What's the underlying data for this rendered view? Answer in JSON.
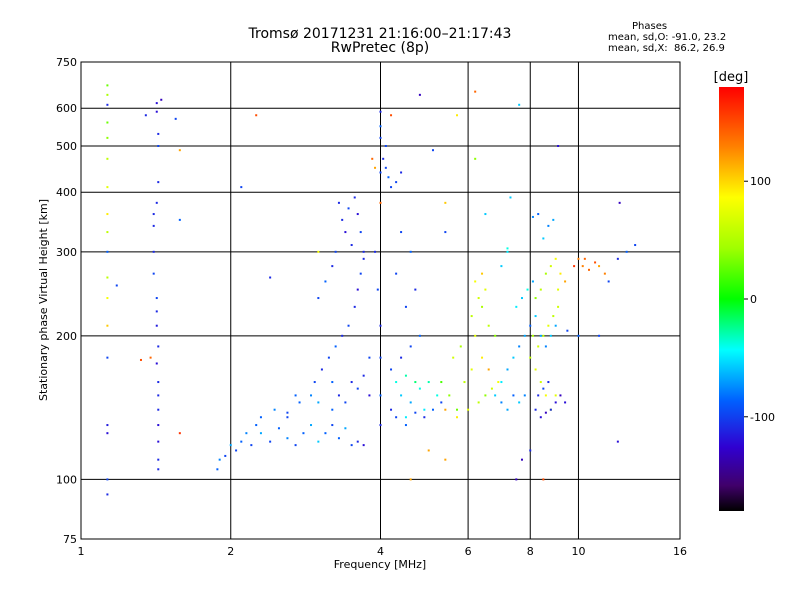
{
  "title": {
    "line1": "Tromsø 20171231 21:16:00–21:17:43",
    "line2": "RwPretec (8p)"
  },
  "phase_stats": {
    "heading": "Phases",
    "line1": "mean, sd,O: -91.0, 23.2",
    "line2": "mean, sd,X:  86.2, 26.9"
  },
  "colorbar": {
    "unit": "[deg]",
    "ticks": [
      {
        "value": 100,
        "label": "100"
      },
      {
        "value": 0,
        "label": "0"
      },
      {
        "value": -100,
        "label": "-100"
      }
    ],
    "range": [
      -180,
      180
    ]
  },
  "chart_data": {
    "type": "scatter",
    "xlabel": "Frequency [MHz]",
    "ylabel": "Stationary phase Virtual Height [km]",
    "xscale": "log",
    "yscale": "log",
    "xlim": [
      1,
      16
    ],
    "ylim": [
      75,
      750
    ],
    "grid": true,
    "x_ticks": [
      {
        "value": 1,
        "label": "1"
      },
      {
        "value": 2,
        "label": "2"
      },
      {
        "value": 4,
        "label": "4"
      },
      {
        "value": 6,
        "label": "6"
      },
      {
        "value": 8,
        "label": "8"
      },
      {
        "value": 10,
        "label": "10"
      },
      {
        "value": 16,
        "label": "16"
      }
    ],
    "y_ticks": [
      {
        "value": 75,
        "label": "75"
      },
      {
        "value": 100,
        "label": "100"
      },
      {
        "value": 200,
        "label": "200"
      },
      {
        "value": 300,
        "label": "300"
      },
      {
        "value": 400,
        "label": "400"
      },
      {
        "value": 500,
        "label": "500"
      },
      {
        "value": 600,
        "label": "600"
      },
      {
        "value": 750,
        "label": "750"
      }
    ],
    "color_quantity": "phase [deg]",
    "points": [
      [
        1.13,
        100,
        -100
      ],
      [
        1.13,
        93,
        -110
      ],
      [
        1.13,
        125,
        -120
      ],
      [
        1.13,
        130,
        -115
      ],
      [
        1.13,
        180,
        -100
      ],
      [
        1.13,
        210,
        110
      ],
      [
        1.13,
        240,
        90
      ],
      [
        1.13,
        265,
        60
      ],
      [
        1.13,
        300,
        -90
      ],
      [
        1.13,
        330,
        60
      ],
      [
        1.13,
        360,
        100
      ],
      [
        1.13,
        410,
        80
      ],
      [
        1.13,
        470,
        60
      ],
      [
        1.13,
        520,
        40
      ],
      [
        1.13,
        560,
        30
      ],
      [
        1.13,
        610,
        -110
      ],
      [
        1.13,
        640,
        50
      ],
      [
        1.13,
        670,
        30
      ],
      [
        1.18,
        255,
        -100
      ],
      [
        1.35,
        580,
        -110
      ],
      [
        1.42,
        590,
        -120
      ],
      [
        1.43,
        530,
        -110
      ],
      [
        1.43,
        500,
        -100
      ],
      [
        1.43,
        420,
        -110
      ],
      [
        1.42,
        380,
        -110
      ],
      [
        1.4,
        360,
        -110
      ],
      [
        1.4,
        340,
        -110
      ],
      [
        1.4,
        300,
        -110
      ],
      [
        1.4,
        270,
        -100
      ],
      [
        1.42,
        240,
        -100
      ],
      [
        1.42,
        225,
        -110
      ],
      [
        1.42,
        210,
        -115
      ],
      [
        1.43,
        190,
        -110
      ],
      [
        1.42,
        175,
        -120
      ],
      [
        1.43,
        160,
        -110
      ],
      [
        1.43,
        150,
        -110
      ],
      [
        1.43,
        140,
        -110
      ],
      [
        1.43,
        130,
        -120
      ],
      [
        1.43,
        120,
        -120
      ],
      [
        1.43,
        110,
        -110
      ],
      [
        1.43,
        105,
        -110
      ],
      [
        1.38,
        180,
        140
      ],
      [
        1.32,
        178,
        150
      ],
      [
        1.42,
        615,
        -120
      ],
      [
        1.45,
        625,
        -130
      ],
      [
        1.55,
        570,
        -100
      ],
      [
        1.58,
        490,
        120
      ],
      [
        1.58,
        350,
        -90
      ],
      [
        1.58,
        125,
        160
      ],
      [
        1.88,
        105,
        -90
      ],
      [
        1.9,
        110,
        -80
      ],
      [
        1.95,
        112,
        -100
      ],
      [
        2.0,
        118,
        -70
      ],
      [
        2.05,
        115,
        -100
      ],
      [
        2.1,
        120,
        -90
      ],
      [
        2.15,
        125,
        -80
      ],
      [
        2.2,
        118,
        -100
      ],
      [
        2.25,
        130,
        -90
      ],
      [
        2.3,
        125,
        -70
      ],
      [
        2.4,
        120,
        -100
      ],
      [
        2.5,
        128,
        -90
      ],
      [
        2.6,
        122,
        -80
      ],
      [
        2.7,
        118,
        -100
      ],
      [
        2.8,
        125,
        -90
      ],
      [
        2.9,
        130,
        -70
      ],
      [
        3.0,
        120,
        -60
      ],
      [
        3.1,
        125,
        -90
      ],
      [
        3.2,
        130,
        -100
      ],
      [
        3.3,
        122,
        -90
      ],
      [
        3.4,
        128,
        -70
      ],
      [
        3.5,
        118,
        -100
      ],
      [
        3.6,
        120,
        -110
      ],
      [
        3.7,
        118,
        -120
      ],
      [
        2.3,
        135,
        -90
      ],
      [
        2.45,
        140,
        -80
      ],
      [
        2.6,
        138,
        -100
      ],
      [
        2.75,
        145,
        -90
      ],
      [
        2.9,
        150,
        -80
      ],
      [
        3.0,
        145,
        -70
      ],
      [
        3.2,
        140,
        -90
      ],
      [
        2.95,
        160,
        -100
      ],
      [
        3.05,
        170,
        -110
      ],
      [
        3.15,
        180,
        -100
      ],
      [
        3.25,
        190,
        -90
      ],
      [
        3.35,
        200,
        -110
      ],
      [
        3.45,
        210,
        -100
      ],
      [
        3.55,
        230,
        -110
      ],
      [
        3.6,
        250,
        -120
      ],
      [
        3.65,
        270,
        -100
      ],
      [
        3.7,
        290,
        -110
      ],
      [
        3.5,
        310,
        -110
      ],
      [
        3.4,
        330,
        -120
      ],
      [
        3.35,
        350,
        -110
      ],
      [
        3.45,
        370,
        -100
      ],
      [
        3.55,
        390,
        -110
      ],
      [
        3.6,
        360,
        -120
      ],
      [
        3.65,
        330,
        -100
      ],
      [
        3.7,
        300,
        -110
      ],
      [
        3.3,
        380,
        -110
      ],
      [
        3.25,
        300,
        -100
      ],
      [
        3.2,
        280,
        -110
      ],
      [
        3.1,
        260,
        -90
      ],
      [
        3.0,
        240,
        -100
      ],
      [
        3.5,
        160,
        -110
      ],
      [
        3.6,
        155,
        -100
      ],
      [
        3.8,
        150,
        -120
      ],
      [
        3.7,
        165,
        -110
      ],
      [
        3.8,
        180,
        -100
      ],
      [
        3.3,
        150,
        -110
      ],
      [
        3.4,
        145,
        -100
      ],
      [
        3.2,
        160,
        -90
      ],
      [
        3.9,
        300,
        -110
      ],
      [
        3.95,
        250,
        -100
      ],
      [
        4.0,
        210,
        -110
      ],
      [
        4.0,
        180,
        -100
      ],
      [
        4.0,
        150,
        -90
      ],
      [
        4.0,
        130,
        -110
      ],
      [
        4.0,
        440,
        -100
      ],
      [
        4.05,
        470,
        -110
      ],
      [
        4.1,
        450,
        -100
      ],
      [
        4.15,
        430,
        -90
      ],
      [
        4.3,
        420,
        -100
      ],
      [
        4.4,
        440,
        -110
      ],
      [
        4.2,
        410,
        -100
      ],
      [
        4.0,
        520,
        -100
      ],
      [
        4.0,
        550,
        -90
      ],
      [
        4.0,
        590,
        -110
      ],
      [
        4.1,
        500,
        -100
      ],
      [
        4.0,
        380,
        140
      ],
      [
        3.85,
        470,
        140
      ],
      [
        3.9,
        450,
        120
      ],
      [
        4.3,
        160,
        -40
      ],
      [
        4.5,
        165,
        -30
      ],
      [
        4.7,
        160,
        -20
      ],
      [
        4.8,
        155,
        -40
      ],
      [
        5.0,
        160,
        -30
      ],
      [
        4.4,
        150,
        -60
      ],
      [
        4.6,
        145,
        -70
      ],
      [
        4.9,
        140,
        -50
      ],
      [
        5.2,
        150,
        -40
      ],
      [
        4.2,
        170,
        -100
      ],
      [
        4.4,
        180,
        -110
      ],
      [
        4.6,
        190,
        -100
      ],
      [
        4.8,
        200,
        -90
      ],
      [
        4.5,
        230,
        -100
      ],
      [
        4.7,
        250,
        -110
      ],
      [
        4.3,
        270,
        -100
      ],
      [
        4.6,
        300,
        -90
      ],
      [
        4.4,
        330,
        -100
      ],
      [
        4.2,
        140,
        -110
      ],
      [
        4.3,
        135,
        -100
      ],
      [
        4.5,
        130,
        -90
      ],
      [
        4.7,
        138,
        -100
      ],
      [
        4.9,
        135,
        -110
      ],
      [
        5.1,
        140,
        -90
      ],
      [
        5.3,
        145,
        -100
      ],
      [
        5.3,
        160,
        20
      ],
      [
        5.5,
        150,
        40
      ],
      [
        5.7,
        140,
        30
      ],
      [
        5.9,
        160,
        60
      ],
      [
        6.1,
        170,
        80
      ],
      [
        5.6,
        180,
        70
      ],
      [
        5.8,
        190,
        50
      ],
      [
        6.2,
        200,
        80
      ],
      [
        6.4,
        180,
        100
      ],
      [
        6.6,
        170,
        120
      ],
      [
        5.4,
        140,
        120
      ],
      [
        5.7,
        135,
        100
      ],
      [
        6.0,
        140,
        80
      ],
      [
        6.3,
        145,
        60
      ],
      [
        6.5,
        150,
        40
      ],
      [
        6.7,
        155,
        70
      ],
      [
        6.9,
        160,
        90
      ],
      [
        6.1,
        220,
        60
      ],
      [
        6.3,
        240,
        70
      ],
      [
        6.5,
        250,
        80
      ],
      [
        6.4,
        230,
        50
      ],
      [
        6.6,
        210,
        60
      ],
      [
        6.8,
        200,
        40
      ],
      [
        6.2,
        260,
        90
      ],
      [
        6.4,
        270,
        110
      ],
      [
        6.8,
        150,
        -60
      ],
      [
        7.0,
        145,
        -80
      ],
      [
        7.2,
        140,
        -70
      ],
      [
        7.4,
        150,
        -90
      ],
      [
        7.6,
        145,
        -60
      ],
      [
        7.8,
        150,
        -80
      ],
      [
        7.0,
        160,
        -50
      ],
      [
        7.2,
        170,
        -70
      ],
      [
        7.4,
        180,
        -60
      ],
      [
        7.6,
        190,
        -80
      ],
      [
        7.8,
        200,
        -70
      ],
      [
        8.0,
        210,
        -90
      ],
      [
        8.2,
        220,
        -60
      ],
      [
        8.4,
        200,
        -70
      ],
      [
        8.6,
        190,
        -80
      ],
      [
        8.8,
        200,
        -60
      ],
      [
        9.0,
        210,
        -70
      ],
      [
        7.5,
        230,
        -50
      ],
      [
        7.7,
        240,
        -60
      ],
      [
        7.9,
        250,
        -40
      ],
      [
        8.1,
        260,
        -70
      ],
      [
        7.0,
        280,
        -60
      ],
      [
        7.2,
        300,
        -50
      ],
      [
        8.0,
        180,
        60
      ],
      [
        8.2,
        170,
        80
      ],
      [
        8.4,
        160,
        70
      ],
      [
        8.6,
        150,
        90
      ],
      [
        8.8,
        140,
        60
      ],
      [
        9.0,
        150,
        80
      ],
      [
        8.1,
        200,
        50
      ],
      [
        8.3,
        190,
        70
      ],
      [
        8.5,
        200,
        60
      ],
      [
        8.7,
        210,
        80
      ],
      [
        8.9,
        220,
        60
      ],
      [
        9.1,
        230,
        70
      ],
      [
        8.2,
        240,
        40
      ],
      [
        8.4,
        250,
        60
      ],
      [
        8.6,
        270,
        50
      ],
      [
        8.8,
        280,
        70
      ],
      [
        9.0,
        290,
        90
      ],
      [
        9.2,
        270,
        100
      ],
      [
        9.4,
        260,
        120
      ],
      [
        9.1,
        250,
        80
      ],
      [
        8.5,
        320,
        -60
      ],
      [
        8.7,
        340,
        -80
      ],
      [
        8.9,
        350,
        -70
      ],
      [
        8.3,
        360,
        -90
      ],
      [
        8.1,
        355,
        -80
      ],
      [
        8.2,
        140,
        -110
      ],
      [
        8.4,
        135,
        -120
      ],
      [
        8.6,
        138,
        -130
      ],
      [
        8.8,
        140,
        -110
      ],
      [
        9.0,
        145,
        -120
      ],
      [
        9.2,
        150,
        -130
      ],
      [
        9.4,
        145,
        -120
      ],
      [
        8.3,
        150,
        -110
      ],
      [
        8.5,
        155,
        -100
      ],
      [
        8.7,
        160,
        -110
      ],
      [
        10.2,
        280,
        130
      ],
      [
        10.5,
        275,
        140
      ],
      [
        10.8,
        285,
        150
      ],
      [
        11.0,
        280,
        120
      ],
      [
        11.3,
        270,
        130
      ],
      [
        9.8,
        280,
        160
      ],
      [
        10.0,
        290,
        130
      ],
      [
        10.3,
        290,
        140
      ],
      [
        12.1,
        380,
        -130
      ],
      [
        12.5,
        300,
        -90
      ],
      [
        13.0,
        310,
        -100
      ],
      [
        11.5,
        260,
        -100
      ],
      [
        12.0,
        290,
        -110
      ],
      [
        12.0,
        120,
        -120
      ],
      [
        11.0,
        200,
        -100
      ],
      [
        10.0,
        200,
        -90
      ],
      [
        9.5,
        205,
        -100
      ],
      [
        2.1,
        410,
        -100
      ],
      [
        2.4,
        265,
        -110
      ],
      [
        2.25,
        580,
        150
      ],
      [
        2.6,
        135,
        -100
      ],
      [
        2.7,
        150,
        -90
      ],
      [
        3.0,
        300,
        90
      ],
      [
        5.1,
        490,
        -100
      ],
      [
        4.8,
        640,
        -130
      ],
      [
        6.2,
        650,
        140
      ],
      [
        7.6,
        610,
        -60
      ],
      [
        8.5,
        100,
        150
      ],
      [
        9.1,
        500,
        -120
      ],
      [
        7.3,
        390,
        -60
      ],
      [
        6.5,
        360,
        -60
      ],
      [
        6.2,
        470,
        40
      ],
      [
        5.4,
        380,
        110
      ],
      [
        5.4,
        330,
        -100
      ],
      [
        4.2,
        580,
        150
      ],
      [
        5.7,
        580,
        100
      ],
      [
        7.2,
        305,
        -40
      ],
      [
        7.5,
        100,
        -130
      ],
      [
        8.0,
        115,
        -110
      ],
      [
        7.7,
        110,
        -130
      ],
      [
        4.5,
        135,
        -50
      ],
      [
        4.6,
        100,
        120
      ],
      [
        5.0,
        115,
        120
      ],
      [
        5.4,
        110,
        120
      ]
    ]
  }
}
